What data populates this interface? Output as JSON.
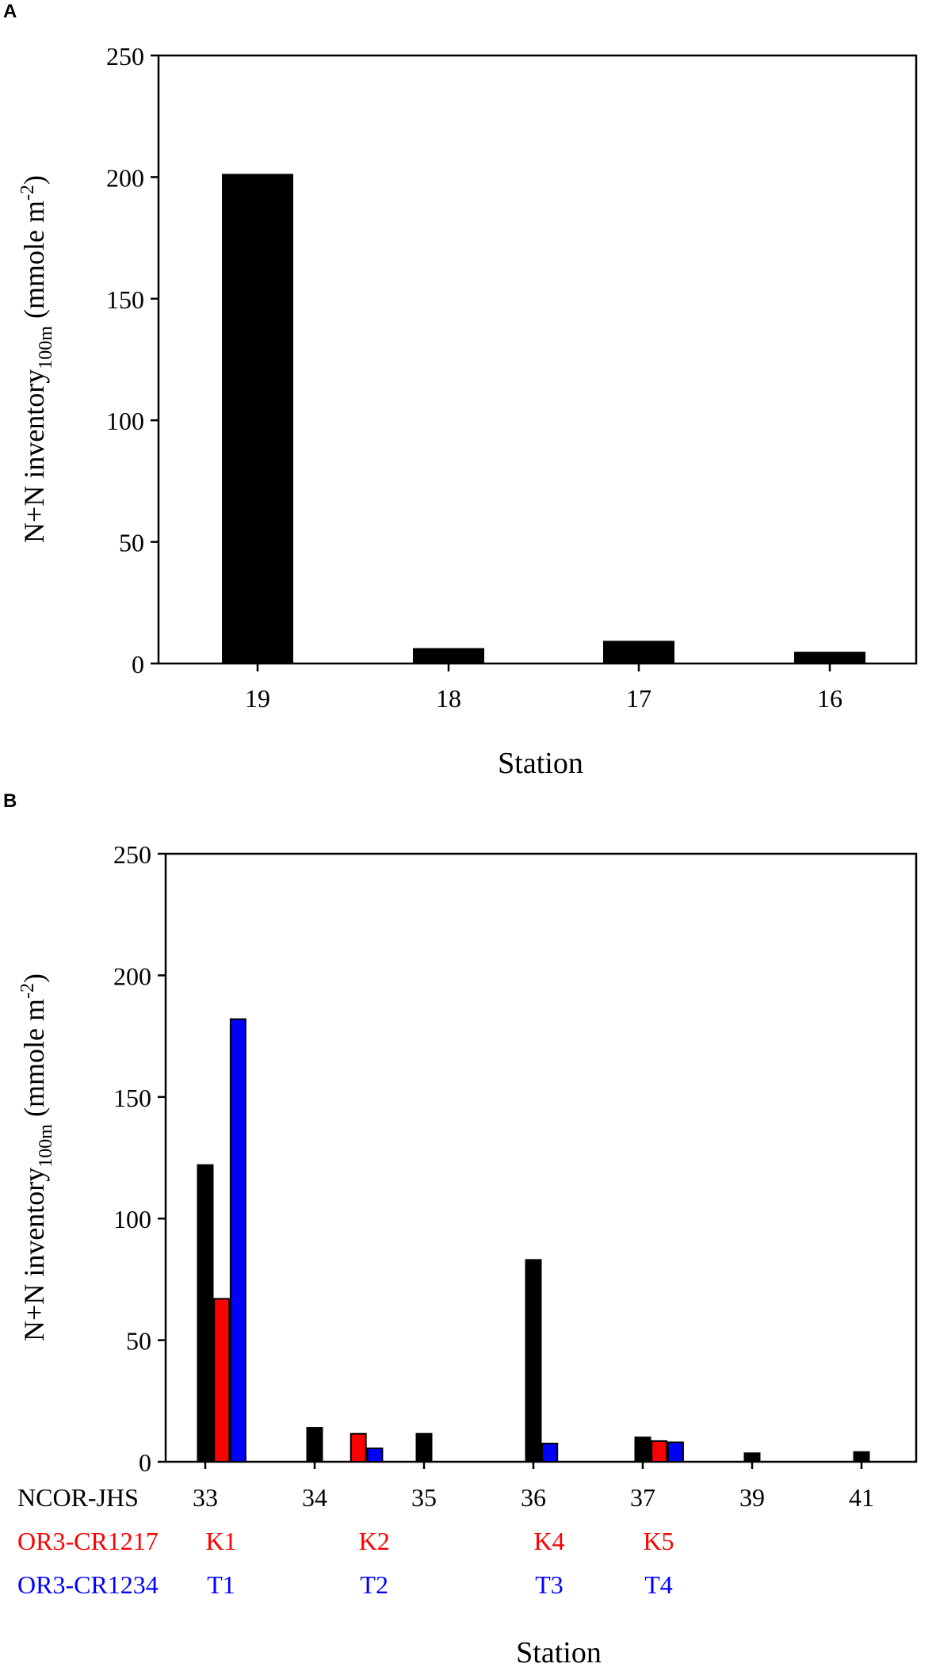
{
  "chart_data": [
    {
      "panel_label": "A",
      "type": "bar",
      "ylabel_parts": [
        "N+N inventory",
        "100m",
        " (mmole m",
        "-2",
        ")"
      ],
      "xlabel": "Station",
      "ylim": [
        0,
        250
      ],
      "yticks": [
        0,
        50,
        100,
        150,
        200,
        250
      ],
      "categories": [
        "19",
        "18",
        "17",
        "16"
      ],
      "series": [
        {
          "color": "#000000",
          "values": [
            201,
            6,
            9,
            4.5
          ]
        }
      ]
    },
    {
      "panel_label": "B",
      "type": "bar",
      "ylabel_parts": [
        "N+N inventory",
        "100m",
        " (mmole m",
        "-2",
        ")"
      ],
      "xlabel": "Station",
      "ylim": [
        0,
        250
      ],
      "yticks": [
        0,
        50,
        100,
        150,
        200,
        250
      ],
      "categories": [
        "33",
        "34",
        "35",
        "36",
        "37",
        "39",
        "41"
      ],
      "row_labels": [
        {
          "name": "NCOR-JHS",
          "color": "#000000",
          "labels": [
            "33",
            "34",
            "35",
            "36",
            "37",
            "39",
            "41"
          ]
        },
        {
          "name": "OR3-CR1217",
          "color": "#ff0000",
          "labels": [
            "K1",
            "K2",
            "K4",
            "K5"
          ]
        },
        {
          "name": "OR3-CR1234",
          "color": "#0000ff",
          "labels": [
            "T1",
            "T2",
            "T3",
            "T4"
          ]
        }
      ],
      "bars": [
        {
          "series": "NCOR-JHS",
          "color": "#000000",
          "position": 0,
          "value": 122
        },
        {
          "series": "OR3-CR1217",
          "color": "#ff0000",
          "position": 0.15,
          "value": 67
        },
        {
          "series": "OR3-CR1234",
          "color": "#0000ff",
          "position": 0.3,
          "value": 182
        },
        {
          "series": "NCOR-JHS",
          "color": "#000000",
          "position": 1,
          "value": 14
        },
        {
          "series": "OR3-CR1217",
          "color": "#ff0000",
          "position": 1.4,
          "value": 11.5
        },
        {
          "series": "OR3-CR1234",
          "color": "#0000ff",
          "position": 1.55,
          "value": 5.5
        },
        {
          "series": "NCOR-JHS",
          "color": "#000000",
          "position": 2,
          "value": 11.5
        },
        {
          "series": "NCOR-JHS",
          "color": "#000000",
          "position": 3,
          "value": 83
        },
        {
          "series": "OR3-CR1234",
          "color": "#0000ff",
          "position": 3.15,
          "value": 7.5
        },
        {
          "series": "NCOR-JHS",
          "color": "#000000",
          "position": 4,
          "value": 10
        },
        {
          "series": "OR3-CR1217",
          "color": "#ff0000",
          "position": 4.15,
          "value": 8.5
        },
        {
          "series": "OR3-CR1234",
          "color": "#0000ff",
          "position": 4.3,
          "value": 8
        },
        {
          "series": "NCOR-JHS",
          "color": "#000000",
          "position": 5,
          "value": 3.5
        },
        {
          "series": "NCOR-JHS",
          "color": "#000000",
          "position": 6,
          "value": 4
        }
      ]
    }
  ]
}
